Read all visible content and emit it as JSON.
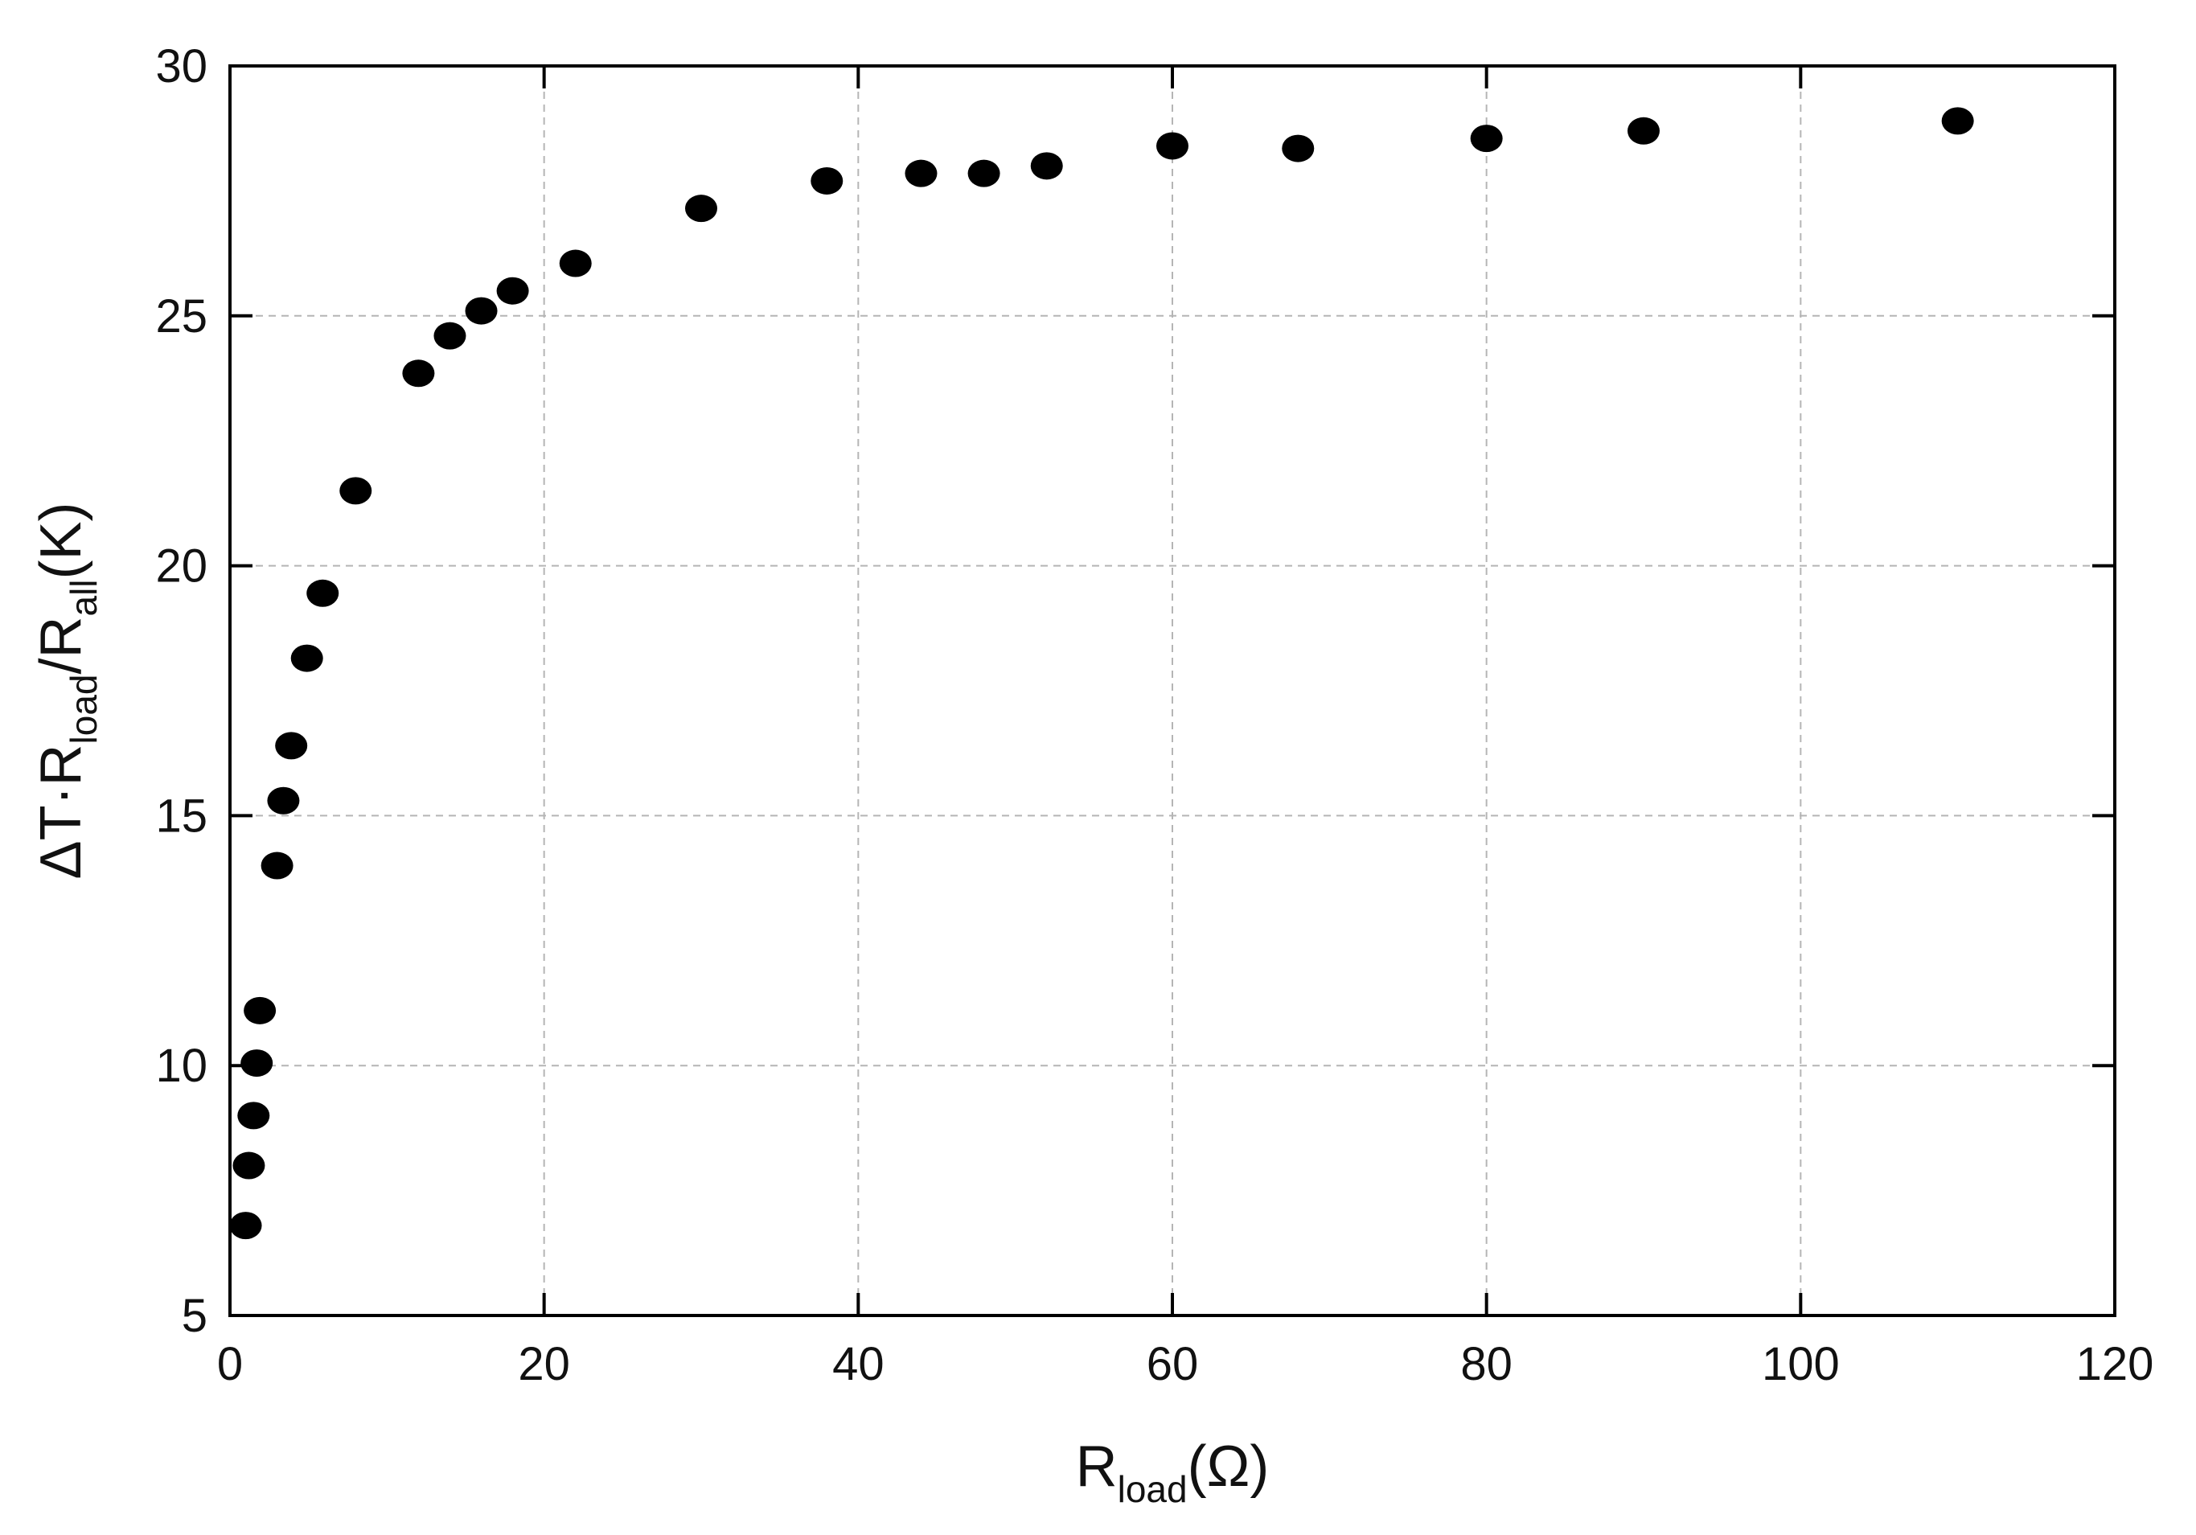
{
  "chart_data": {
    "type": "scatter",
    "title": "",
    "xlabel": {
      "main": "R",
      "sub": "load",
      "tail": "(Ω)"
    },
    "ylabel": {
      "prefix": "ΔT·R",
      "sub1": "load",
      "mid": "/R",
      "sub2": "all",
      "tail": "(K)"
    },
    "xlim": [
      0,
      120
    ],
    "ylim": [
      5,
      30
    ],
    "xticks": [
      0,
      20,
      40,
      60,
      80,
      100,
      120
    ],
    "yticks": [
      5,
      10,
      15,
      20,
      25,
      30
    ],
    "grid": true,
    "marker_color": "#000000",
    "points": [
      {
        "x": 1.0,
        "y": 6.8
      },
      {
        "x": 1.2,
        "y": 8.0
      },
      {
        "x": 1.5,
        "y": 9.0
      },
      {
        "x": 1.7,
        "y": 10.05
      },
      {
        "x": 1.9,
        "y": 11.1
      },
      {
        "x": 3.0,
        "y": 14.0
      },
      {
        "x": 3.4,
        "y": 15.3
      },
      {
        "x": 3.9,
        "y": 16.4
      },
      {
        "x": 4.9,
        "y": 18.15
      },
      {
        "x": 5.9,
        "y": 19.45
      },
      {
        "x": 8.0,
        "y": 21.5
      },
      {
        "x": 12.0,
        "y": 23.85
      },
      {
        "x": 14.0,
        "y": 24.6
      },
      {
        "x": 16.0,
        "y": 25.1
      },
      {
        "x": 18.0,
        "y": 25.5
      },
      {
        "x": 22.0,
        "y": 26.05
      },
      {
        "x": 30.0,
        "y": 27.15
      },
      {
        "x": 38.0,
        "y": 27.7
      },
      {
        "x": 44.0,
        "y": 27.85
      },
      {
        "x": 48.0,
        "y": 27.85
      },
      {
        "x": 52.0,
        "y": 28.0
      },
      {
        "x": 60.0,
        "y": 28.4
      },
      {
        "x": 68.0,
        "y": 28.35
      },
      {
        "x": 80.0,
        "y": 28.55
      },
      {
        "x": 90.0,
        "y": 28.7
      },
      {
        "x": 110.0,
        "y": 28.9
      }
    ]
  }
}
